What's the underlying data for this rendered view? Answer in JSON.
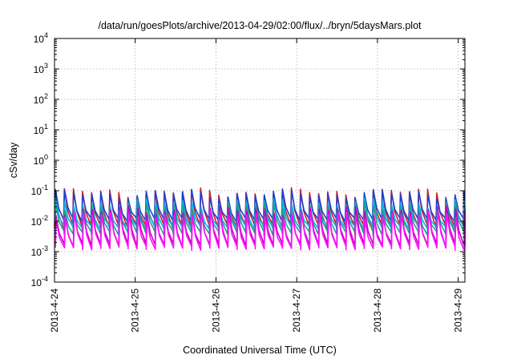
{
  "chart_data": {
    "type": "line",
    "title": "/data/run/goesPlots/archive/2013-04-29/02:00/flux/../bryn/5daysMars.plot",
    "xlabel": "Coordinated Universal Time (UTC)",
    "ylabel": "cSv/day",
    "yscale": "log",
    "ylim": [
      0.0001,
      10000
    ],
    "y_ticks": [
      {
        "base": "10",
        "exp": "-4",
        "value": 0.0001
      },
      {
        "base": "10",
        "exp": "-3",
        "value": 0.001
      },
      {
        "base": "10",
        "exp": "-2",
        "value": 0.01
      },
      {
        "base": "10",
        "exp": "-1",
        "value": 0.1
      },
      {
        "base": "10",
        "exp": "0",
        "value": 1
      },
      {
        "base": "10",
        "exp": "1",
        "value": 10
      },
      {
        "base": "10",
        "exp": "2",
        "value": 100
      },
      {
        "base": "10",
        "exp": "3",
        "value": 1000
      },
      {
        "base": "10",
        "exp": "4",
        "value": 10000
      }
    ],
    "xlim": [
      "2013-04-24T00:00",
      "2013-04-29T02:00"
    ],
    "x_ticks": [
      {
        "label": "2013-4-24",
        "date": "2013-04-24T00:00"
      },
      {
        "label": "2013-4-25",
        "date": "2013-04-25T00:00"
      },
      {
        "label": "2013-4-26",
        "date": "2013-04-26T00:00"
      },
      {
        "label": "2013-4-27",
        "date": "2013-04-27T00:00"
      },
      {
        "label": "2013-4-28",
        "date": "2013-04-28T00:00"
      },
      {
        "label": "2013-4-29",
        "date": "2013-04-29T00:00"
      }
    ],
    "grid": true,
    "pattern": "sawtooth",
    "period_hours": 2.7,
    "series": [
      {
        "color": "#d0202a",
        "peak": 0.11,
        "trough": 0.007
      },
      {
        "color": "#2040d0",
        "peak": 0.1,
        "trough": 0.011
      },
      {
        "color": "#00b8e8",
        "peak": 0.05,
        "trough": 0.006
      },
      {
        "color": "#20a090",
        "peak": 0.04,
        "trough": 0.004
      },
      {
        "color": "#c000c0",
        "peak": 0.028,
        "trough": 0.0016
      },
      {
        "color": "#ff10ff",
        "peak": 0.02,
        "trough": 0.0013
      }
    ]
  }
}
